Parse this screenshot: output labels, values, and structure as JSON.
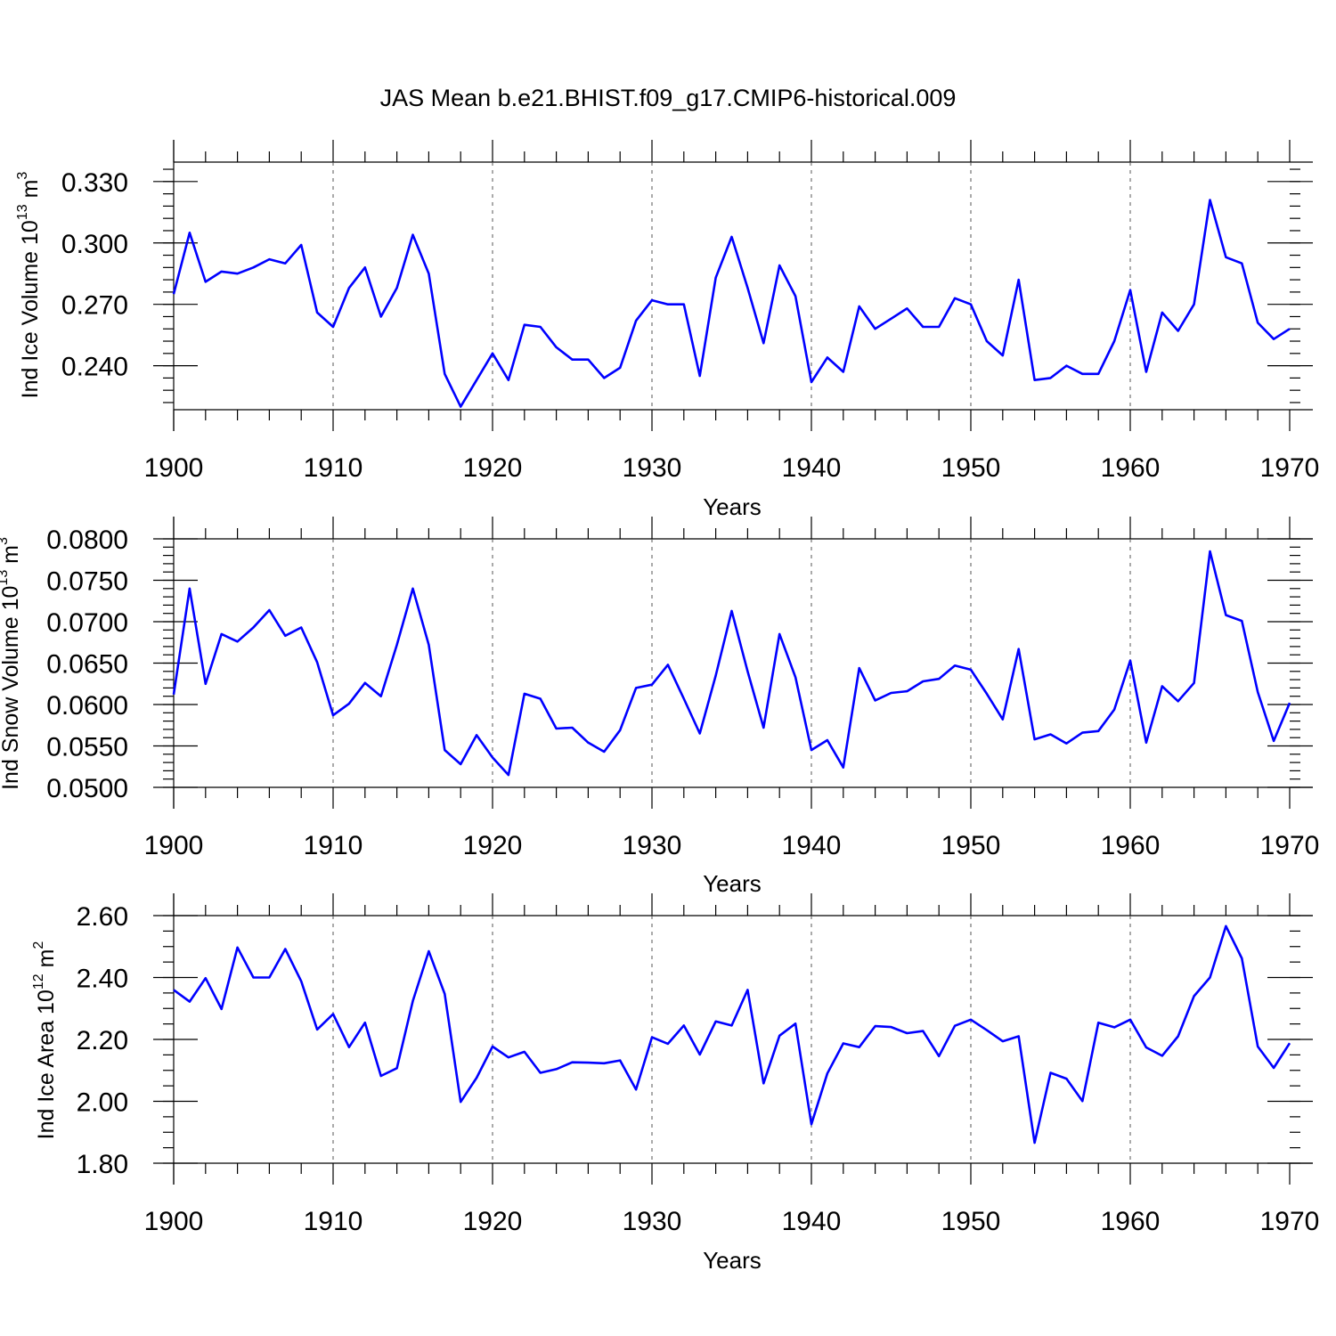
{
  "title": "JAS Mean b.e21.BHIST.f09_g17.CMIP6-historical.009",
  "colors": {
    "line": "#0000ff",
    "axes": "#000000",
    "grid": "#555555",
    "background": "#ffffff"
  },
  "chart_data": [
    {
      "type": "line",
      "ylabel": "Ind Ice Volume 10^13 m^3",
      "ylabel_main": "Ind Ice Volume 10",
      "ylabel_exp1": "13",
      "ylabel_unit": " m",
      "ylabel_exp2": "3",
      "xlabel": "Years",
      "xlim": [
        1900,
        1970
      ],
      "ylim": [
        0.2185,
        0.3395
      ],
      "yticks": [
        0.24,
        0.27,
        0.3,
        0.33
      ],
      "yticklabels": [
        "0.240",
        "0.270",
        "0.300",
        "0.330"
      ],
      "yminor": 0.006,
      "xticks": [
        1900,
        1910,
        1920,
        1930,
        1940,
        1950,
        1960,
        1970
      ],
      "xticklabels": [
        "1900",
        "1910",
        "1920",
        "1930",
        "1940",
        "1950",
        "1960",
        "1970"
      ],
      "grid": "dashed vertical at x ticks",
      "x": [
        1900,
        1901,
        1902,
        1903,
        1904,
        1905,
        1906,
        1907,
        1908,
        1909,
        1910,
        1911,
        1912,
        1913,
        1914,
        1915,
        1916,
        1917,
        1918,
        1919,
        1920,
        1921,
        1922,
        1923,
        1924,
        1925,
        1926,
        1927,
        1928,
        1929,
        1930,
        1931,
        1932,
        1933,
        1934,
        1935,
        1936,
        1937,
        1938,
        1939,
        1940,
        1941,
        1942,
        1943,
        1944,
        1945,
        1946,
        1947,
        1948,
        1949,
        1950,
        1951,
        1952,
        1953,
        1954,
        1955,
        1956,
        1957,
        1958,
        1959,
        1960,
        1961,
        1962,
        1963,
        1964,
        1965,
        1966,
        1967,
        1968,
        1969,
        1970
      ],
      "series": [
        {
          "name": "Ind Ice Volume",
          "values": [
            0.275,
            0.305,
            0.281,
            0.286,
            0.285,
            0.288,
            0.292,
            0.29,
            0.299,
            0.266,
            0.259,
            0.278,
            0.288,
            0.264,
            0.278,
            0.304,
            0.285,
            0.236,
            0.22,
            0.233,
            0.246,
            0.233,
            0.26,
            0.259,
            0.249,
            0.243,
            0.243,
            0.234,
            0.239,
            0.262,
            0.272,
            0.27,
            0.27,
            0.235,
            0.283,
            0.303,
            0.278,
            0.251,
            0.289,
            0.274,
            0.232,
            0.244,
            0.237,
            0.269,
            0.258,
            0.263,
            0.268,
            0.259,
            0.259,
            0.273,
            0.27,
            0.252,
            0.245,
            0.282,
            0.233,
            0.234,
            0.24,
            0.236,
            0.236,
            0.252,
            0.277,
            0.237,
            0.266,
            0.257,
            0.27,
            0.321,
            0.293,
            0.29,
            0.261,
            0.253,
            0.258
          ]
        }
      ]
    },
    {
      "type": "line",
      "ylabel": "Ind Snow Volume 10^13 m^3",
      "ylabel_main": "Ind Snow Volume 10",
      "ylabel_exp1": "13",
      "ylabel_unit": " m",
      "ylabel_exp2": "3",
      "xlabel": "Years",
      "xlim": [
        1900,
        1970
      ],
      "ylim": [
        0.05,
        0.08
      ],
      "yticks": [
        0.05,
        0.055,
        0.06,
        0.065,
        0.07,
        0.075,
        0.08
      ],
      "yticklabels": [
        "0.0500",
        "0.0550",
        "0.0600",
        "0.0650",
        "0.0700",
        "0.0750",
        "0.0800"
      ],
      "yminor": 0.001,
      "xticks": [
        1900,
        1910,
        1920,
        1930,
        1940,
        1950,
        1960,
        1970
      ],
      "xticklabels": [
        "1900",
        "1910",
        "1920",
        "1930",
        "1940",
        "1950",
        "1960",
        "1970"
      ],
      "grid": "dashed vertical at x ticks",
      "x": [
        1900,
        1901,
        1902,
        1903,
        1904,
        1905,
        1906,
        1907,
        1908,
        1909,
        1910,
        1911,
        1912,
        1913,
        1914,
        1915,
        1916,
        1917,
        1918,
        1919,
        1920,
        1921,
        1922,
        1923,
        1924,
        1925,
        1926,
        1927,
        1928,
        1929,
        1930,
        1931,
        1932,
        1933,
        1934,
        1935,
        1936,
        1937,
        1938,
        1939,
        1940,
        1941,
        1942,
        1943,
        1944,
        1945,
        1946,
        1947,
        1948,
        1949,
        1950,
        1951,
        1952,
        1953,
        1954,
        1955,
        1956,
        1957,
        1958,
        1959,
        1960,
        1961,
        1962,
        1963,
        1964,
        1965,
        1966,
        1967,
        1968,
        1969,
        1970
      ],
      "series": [
        {
          "name": "Ind Snow Volume",
          "values": [
            0.0612,
            0.074,
            0.0625,
            0.0685,
            0.0676,
            0.0693,
            0.0714,
            0.0683,
            0.0693,
            0.0651,
            0.0587,
            0.0601,
            0.0626,
            0.061,
            0.0672,
            0.074,
            0.0672,
            0.0545,
            0.0528,
            0.0563,
            0.0536,
            0.0515,
            0.0613,
            0.0607,
            0.0571,
            0.0572,
            0.0554,
            0.0543,
            0.0569,
            0.062,
            0.0624,
            0.0648,
            0.0607,
            0.0565,
            0.0635,
            0.0713,
            0.064,
            0.0572,
            0.0685,
            0.0633,
            0.0545,
            0.0557,
            0.0524,
            0.0644,
            0.0605,
            0.0614,
            0.0616,
            0.0628,
            0.0631,
            0.0647,
            0.0642,
            0.0613,
            0.0582,
            0.0667,
            0.0558,
            0.0564,
            0.0553,
            0.0566,
            0.0568,
            0.0594,
            0.0653,
            0.0554,
            0.0622,
            0.0604,
            0.0626,
            0.0785,
            0.0708,
            0.0701,
            0.0615,
            0.0556,
            0.0602
          ]
        }
      ]
    },
    {
      "type": "line",
      "ylabel": "Ind Ice Area 10^12 m^2",
      "ylabel_main": "Ind Ice Area 10",
      "ylabel_exp1": "12",
      "ylabel_unit": " m",
      "ylabel_exp2": "2",
      "xlabel": "Years",
      "xlim": [
        1900,
        1970
      ],
      "ylim": [
        1.8,
        2.6
      ],
      "yticks": [
        1.8,
        2.0,
        2.2,
        2.4,
        2.6
      ],
      "yticklabels": [
        "1.80",
        "2.00",
        "2.20",
        "2.40",
        "2.60"
      ],
      "yminor": 0.05,
      "xticks": [
        1900,
        1910,
        1920,
        1930,
        1940,
        1950,
        1960,
        1970
      ],
      "xticklabels": [
        "1900",
        "1910",
        "1920",
        "1930",
        "1940",
        "1950",
        "1960",
        "1970"
      ],
      "grid": "dashed vertical at x ticks",
      "x": [
        1900,
        1901,
        1902,
        1903,
        1904,
        1905,
        1906,
        1907,
        1908,
        1909,
        1910,
        1911,
        1912,
        1913,
        1914,
        1915,
        1916,
        1917,
        1918,
        1919,
        1920,
        1921,
        1922,
        1923,
        1924,
        1925,
        1926,
        1927,
        1928,
        1929,
        1930,
        1931,
        1932,
        1933,
        1934,
        1935,
        1936,
        1937,
        1938,
        1939,
        1940,
        1941,
        1942,
        1943,
        1944,
        1945,
        1946,
        1947,
        1948,
        1949,
        1950,
        1951,
        1952,
        1953,
        1954,
        1955,
        1956,
        1957,
        1958,
        1959,
        1960,
        1961,
        1962,
        1963,
        1964,
        1965,
        1966,
        1967,
        1968,
        1969,
        1970
      ],
      "series": [
        {
          "name": "Ind Ice Area",
          "values": [
            2.36,
            2.322,
            2.398,
            2.298,
            2.497,
            2.4,
            2.4,
            2.492,
            2.388,
            2.232,
            2.282,
            2.175,
            2.254,
            2.082,
            2.107,
            2.324,
            2.485,
            2.347,
            1.998,
            2.076,
            2.177,
            2.142,
            2.16,
            2.092,
            2.104,
            2.126,
            2.125,
            2.123,
            2.132,
            2.038,
            2.207,
            2.186,
            2.245,
            2.151,
            2.258,
            2.245,
            2.36,
            2.058,
            2.212,
            2.251,
            1.926,
            2.09,
            2.187,
            2.175,
            2.243,
            2.24,
            2.22,
            2.227,
            2.146,
            2.244,
            2.264,
            2.23,
            2.194,
            2.21,
            1.866,
            2.092,
            2.073,
            2.001,
            2.254,
            2.239,
            2.264,
            2.174,
            2.147,
            2.21,
            2.34,
            2.4,
            2.566,
            2.462,
            2.177,
            2.108,
            2.188
          ]
        }
      ]
    }
  ]
}
